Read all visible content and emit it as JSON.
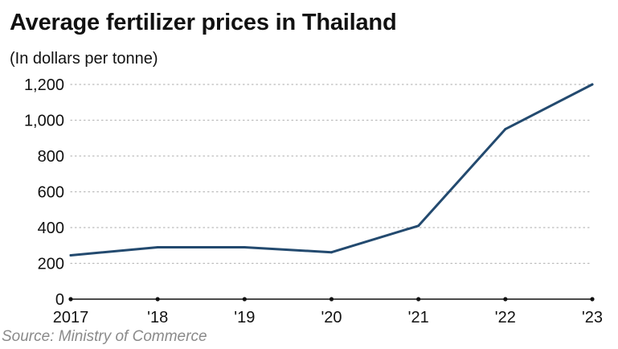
{
  "chart_data": {
    "type": "line",
    "title": "Average fertilizer prices in Thailand",
    "subtitle": "(In dollars per tonne)",
    "source": "Source: Ministry of Commerce",
    "x": [
      "2017",
      "'18",
      "'19",
      "'20",
      "'21",
      "'22",
      "'23"
    ],
    "series": [
      {
        "values": [
          245,
          290,
          290,
          262,
          410,
          950,
          1200
        ]
      }
    ],
    "ylim": [
      0,
      1200
    ],
    "yticks": [
      0,
      200,
      400,
      600,
      800,
      1000,
      1200
    ],
    "ytick_labels": [
      "0",
      "200",
      "400",
      "600",
      "800",
      "1,000",
      "1,200"
    ],
    "grid": "horizontal dotted",
    "legend": "none",
    "colors": {
      "line": "#234a6f",
      "grid": "#bbbbbb",
      "axis": "#111111",
      "source": "#8a8a8a"
    }
  }
}
